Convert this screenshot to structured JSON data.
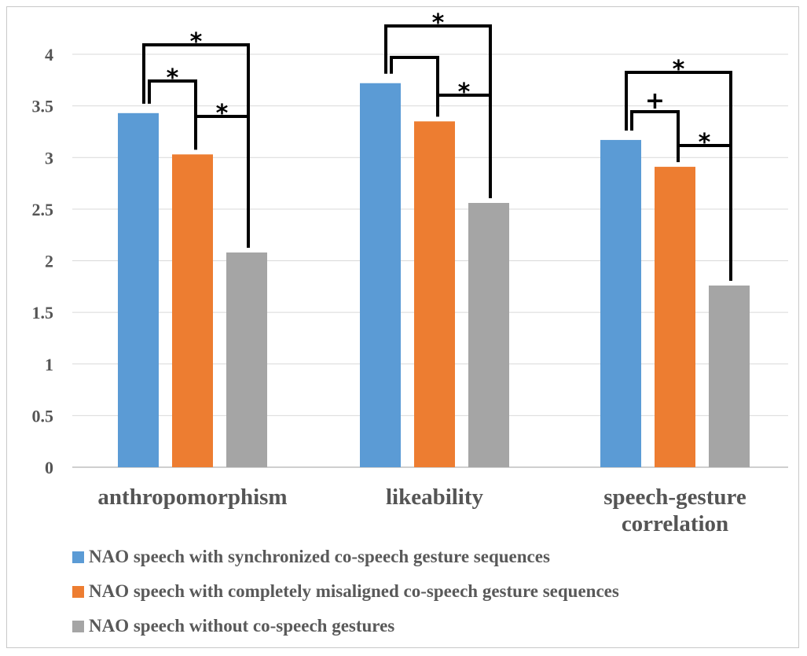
{
  "chart_data": {
    "type": "bar",
    "categories": [
      [
        "anthropomorphism"
      ],
      [
        "likeability"
      ],
      [
        "speech-gesture",
        "correlation"
      ]
    ],
    "series": [
      {
        "name": "NAO speech with synchronized co-speech gesture sequences",
        "color": "#5b9bd5",
        "values": [
          3.43,
          3.72,
          3.17
        ]
      },
      {
        "name": "NAO speech with completely misaligned co-speech gesture sequences",
        "color": "#ed7d31",
        "values": [
          3.03,
          3.35,
          2.91
        ]
      },
      {
        "name": "NAO speech without co-speech gestures",
        "color": "#a5a5a5",
        "values": [
          2.08,
          2.56,
          1.76
        ]
      }
    ],
    "ylim": [
      0,
      4
    ],
    "yticks": [
      "0",
      "0.5",
      "1",
      "1.5",
      "2",
      "2.5",
      "3",
      "3.5",
      "4"
    ],
    "grid": true,
    "legend_position": "bottom",
    "significance": [
      {
        "category": 0,
        "pair": [
          0,
          2
        ],
        "mark": "*"
      },
      {
        "category": 0,
        "pair": [
          0,
          1
        ],
        "mark": "*"
      },
      {
        "category": 0,
        "pair": [
          1,
          2
        ],
        "mark": "*"
      },
      {
        "category": 1,
        "pair": [
          0,
          2
        ],
        "mark": "*"
      },
      {
        "category": 1,
        "pair": [
          0,
          1
        ],
        "mark": ""
      },
      {
        "category": 1,
        "pair": [
          1,
          2
        ],
        "mark": "*"
      },
      {
        "category": 2,
        "pair": [
          0,
          2
        ],
        "mark": "*"
      },
      {
        "category": 2,
        "pair": [
          0,
          1
        ],
        "mark": "+"
      },
      {
        "category": 2,
        "pair": [
          1,
          2
        ],
        "mark": "*"
      }
    ]
  }
}
